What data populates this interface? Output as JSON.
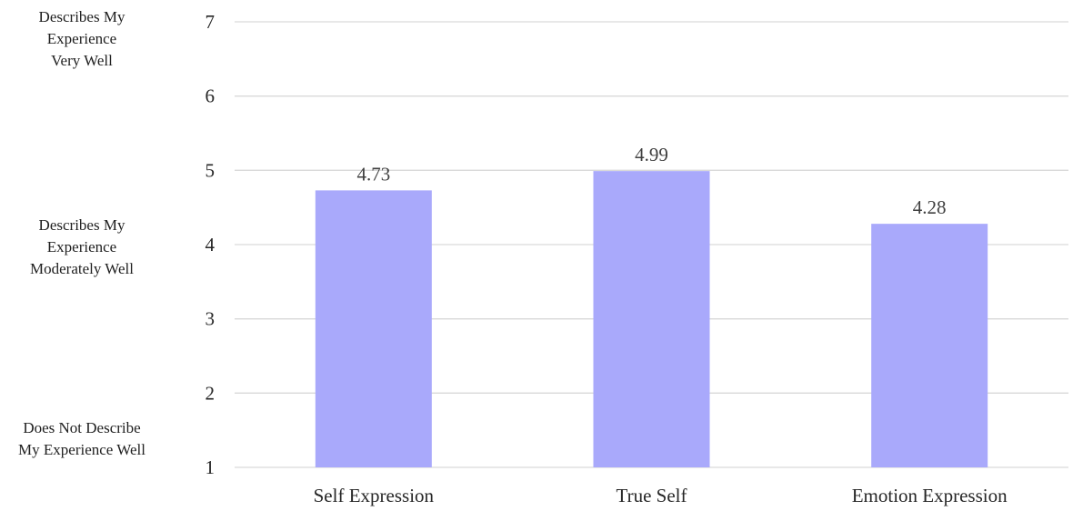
{
  "chart_data": {
    "type": "bar",
    "categories": [
      "Self Expression",
      "True Self",
      "Emotion Expression"
    ],
    "values": [
      4.73,
      4.99,
      4.28
    ],
    "value_labels": [
      "4.73",
      "4.99",
      "4.28"
    ],
    "ylim": [
      1,
      7
    ],
    "yticks": [
      "1",
      "2",
      "3",
      "4",
      "5",
      "6",
      "7"
    ],
    "grid": true,
    "bar_color": "#a9a9fb",
    "grid_color": "#d9d9d9",
    "scale_anchors": [
      {
        "at": 7,
        "lines": [
          "Describes My",
          "Experience",
          "Very Well"
        ]
      },
      {
        "at": 4,
        "lines": [
          "Describes My",
          "Experience",
          "Moderately Well"
        ]
      },
      {
        "at": 1,
        "lines": [
          "Does Not Describe",
          "My Experience Well"
        ]
      }
    ]
  }
}
